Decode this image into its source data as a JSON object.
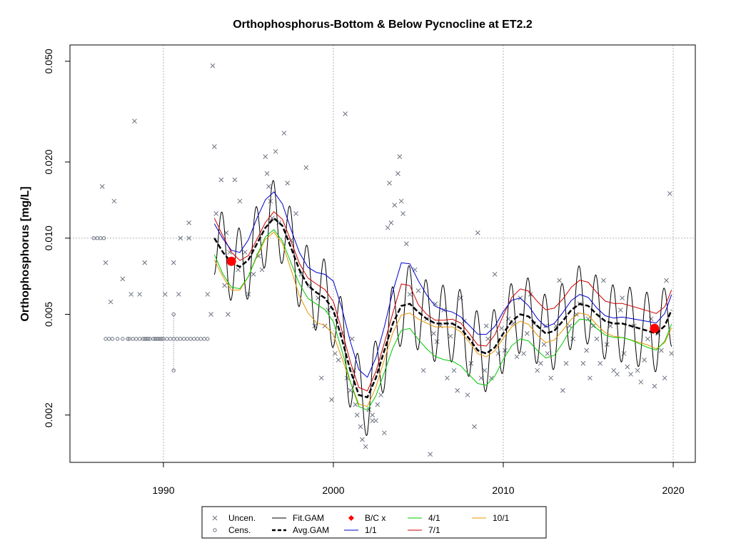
{
  "chart_data": {
    "type": "scatter",
    "title": "Orthophosphorus-Bottom & Below Pycnocline at ET2.2",
    "xlabel": "",
    "ylabel": "Orthophosphorus [mg/L]",
    "xlim": [
      1984.5,
      2021.3
    ],
    "ylim": [
      0.0013,
      0.058
    ],
    "ylog": true,
    "x_ticks": [
      1990,
      2000,
      2010,
      2020
    ],
    "x_tick_labels": [
      "1990",
      "2000",
      "2010",
      "2020"
    ],
    "y_ticks": [
      0.002,
      0.005,
      0.01,
      0.02,
      0.05
    ],
    "y_tick_labels": [
      "0.002",
      "0.005",
      "0.010",
      "0.020",
      "0.050"
    ],
    "grid": {
      "x": [
        1990,
        2000,
        2010,
        2020
      ],
      "y": [
        0.01
      ]
    },
    "colors": {
      "uncen": "#6b7280",
      "cens": "#6b7280",
      "fit_gam": "#000000",
      "avg_gam": "#000000",
      "bc": "#ff0000",
      "s1_1": "#0000cc",
      "s4_1": "#00c800",
      "s7_1": "#cc0000",
      "s10_1": "#e69500"
    },
    "legend": {
      "placement": "bottom-center",
      "entries": [
        {
          "key": "uncen",
          "label": "Uncen."
        },
        {
          "key": "cens",
          "label": "Cens."
        },
        {
          "key": "fit_gam",
          "label": "Fit.GAM"
        },
        {
          "key": "avg_gam",
          "label": "Avg.GAM"
        },
        {
          "key": "bc",
          "label": "B/C x"
        },
        {
          "key": "s1_1",
          "label": "1/1"
        },
        {
          "key": "s4_1",
          "label": "4/1"
        },
        {
          "key": "s7_1",
          "label": "7/1"
        },
        {
          "key": "s10_1",
          "label": "10/1"
        }
      ]
    },
    "avg_gam": {
      "x": [
        1993.0,
        1993.5,
        1994.0,
        1994.5,
        1995.0,
        1995.5,
        1996.0,
        1996.5,
        1997.0,
        1997.5,
        1998.0,
        1998.5,
        1999.0,
        1999.5,
        2000.0,
        2000.5,
        2001.0,
        2001.5,
        2002.0,
        2002.5,
        2003.0,
        2003.5,
        2004.0,
        2004.5,
        2005.0,
        2005.5,
        2006.0,
        2006.5,
        2007.0,
        2007.5,
        2008.0,
        2008.5,
        2009.0,
        2009.5,
        2010.0,
        2010.5,
        2011.0,
        2011.5,
        2012.0,
        2012.5,
        2013.0,
        2013.5,
        2014.0,
        2014.5,
        2015.0,
        2015.5,
        2016.0,
        2016.5,
        2017.0,
        2017.5,
        2018.0,
        2018.5,
        2019.0,
        2019.5,
        2019.9
      ],
      "values": [
        0.01,
        0.0088,
        0.008,
        0.0077,
        0.0082,
        0.0095,
        0.011,
        0.012,
        0.0112,
        0.0092,
        0.0075,
        0.0065,
        0.0061,
        0.0058,
        0.0052,
        0.004,
        0.003,
        0.0024,
        0.00235,
        0.0028,
        0.0036,
        0.0046,
        0.0054,
        0.0055,
        0.0051,
        0.0048,
        0.0046,
        0.0046,
        0.0046,
        0.0044,
        0.004,
        0.0036,
        0.0035,
        0.0037,
        0.0042,
        0.0047,
        0.005,
        0.0049,
        0.0045,
        0.0042,
        0.0043,
        0.0047,
        0.0052,
        0.0055,
        0.0054,
        0.005,
        0.0047,
        0.0046,
        0.0046,
        0.0045,
        0.0044,
        0.0043,
        0.0042,
        0.0045,
        0.0052
      ]
    },
    "bands": {
      "s1_1": [
        1.14,
        1.13,
        1.12,
        1.14,
        1.2,
        1.26,
        1.29,
        1.27,
        1.22,
        1.18,
        1.17,
        1.18,
        1.2,
        1.24,
        1.3,
        1.32,
        1.3,
        1.26,
        1.2,
        1.2,
        1.24,
        1.34,
        1.48,
        1.44,
        1.33,
        1.24,
        1.17,
        1.13,
        1.11,
        1.11,
        1.13,
        1.16,
        1.19,
        1.21,
        1.22,
        1.21,
        1.16,
        1.1,
        1.07,
        1.06,
        1.07,
        1.08,
        1.09,
        1.09,
        1.08,
        1.06,
        1.05,
        1.05,
        1.06,
        1.07,
        1.08,
        1.09,
        1.1,
        1.12,
        1.15
      ],
      "s4_1": [
        0.86,
        0.82,
        0.8,
        0.82,
        0.86,
        0.9,
        0.92,
        0.9,
        0.87,
        0.87,
        0.88,
        0.89,
        0.9,
        0.9,
        0.9,
        0.9,
        0.9,
        0.9,
        0.89,
        0.85,
        0.82,
        0.8,
        0.8,
        0.8,
        0.78,
        0.76,
        0.74,
        0.72,
        0.71,
        0.71,
        0.72,
        0.74,
        0.75,
        0.77,
        0.79,
        0.8,
        0.8,
        0.8,
        0.8,
        0.8,
        0.8,
        0.82,
        0.85,
        0.87,
        0.88,
        0.88,
        0.88,
        0.88,
        0.88,
        0.88,
        0.87,
        0.86,
        0.86,
        0.87,
        0.88
      ],
      "s7_1": [
        1.2,
        1.16,
        1.1,
        1.06,
        1.04,
        1.04,
        1.05,
        1.06,
        1.06,
        1.06,
        1.06,
        1.07,
        1.08,
        1.08,
        1.08,
        1.08,
        1.08,
        1.07,
        1.06,
        1.06,
        1.07,
        1.1,
        1.22,
        1.18,
        1.07,
        1.04,
        1.03,
        1.03,
        1.04,
        1.05,
        1.05,
        1.05,
        1.07,
        1.12,
        1.18,
        1.24,
        1.26,
        1.26,
        1.25,
        1.24,
        1.23,
        1.22,
        1.23,
        1.24,
        1.24,
        1.22,
        1.2,
        1.2,
        1.2,
        1.2,
        1.2,
        1.2,
        1.2,
        1.19,
        1.2
      ],
      "s10_1": [
        0.82,
        0.8,
        0.78,
        0.81,
        0.86,
        0.89,
        0.9,
        0.88,
        0.85,
        0.82,
        0.79,
        0.78,
        0.76,
        0.78,
        0.8,
        0.84,
        0.9,
        0.92,
        0.92,
        0.92,
        0.92,
        0.92,
        0.92,
        0.92,
        0.94,
        0.96,
        0.97,
        0.97,
        0.97,
        0.97,
        0.97,
        0.97,
        0.97,
        0.97,
        0.96,
        0.95,
        0.94,
        0.93,
        0.92,
        0.92,
        0.92,
        0.92,
        0.92,
        0.92,
        0.92,
        0.91,
        0.9,
        0.89,
        0.88,
        0.88,
        0.88,
        0.88,
        0.87,
        0.86,
        0.85
      ]
    },
    "fit_gam_swing": 0.35,
    "bc_points": [
      {
        "x": 1994.0,
        "y": 0.0081
      },
      {
        "x": 2018.9,
        "y": 0.0044
      }
    ],
    "uncensored": [
      [
        1986.4,
        0.016
      ],
      [
        1986.6,
        0.008
      ],
      [
        1986.9,
        0.0056
      ],
      [
        1987.1,
        0.014
      ],
      [
        1987.6,
        0.0069
      ],
      [
        1988.1,
        0.006
      ],
      [
        1988.3,
        0.029
      ],
      [
        1988.6,
        0.006
      ],
      [
        1988.9,
        0.008
      ],
      [
        1990.1,
        0.006
      ],
      [
        1990.6,
        0.008
      ],
      [
        1990.9,
        0.006
      ],
      [
        1991.0,
        0.01
      ],
      [
        1991.5,
        0.0115
      ],
      [
        1991.5,
        0.01
      ],
      [
        1992.6,
        0.006
      ],
      [
        1992.8,
        0.005
      ],
      [
        1992.9,
        0.048
      ],
      [
        1993.0,
        0.023
      ],
      [
        1993.1,
        0.0125
      ],
      [
        1993.4,
        0.017
      ],
      [
        1993.6,
        0.0065
      ],
      [
        1993.7,
        0.0105
      ],
      [
        1993.8,
        0.005
      ],
      [
        1993.9,
        0.0088
      ],
      [
        1994.2,
        0.017
      ],
      [
        1994.4,
        0.0075
      ],
      [
        1994.5,
        0.014
      ],
      [
        1994.8,
        0.0088
      ],
      [
        1995.0,
        0.006
      ],
      [
        1995.3,
        0.0072
      ],
      [
        1995.6,
        0.0085
      ],
      [
        1995.8,
        0.0075
      ],
      [
        1996.0,
        0.021
      ],
      [
        1996.1,
        0.018
      ],
      [
        1996.2,
        0.016
      ],
      [
        1996.3,
        0.014
      ],
      [
        1996.4,
        0.012
      ],
      [
        1996.6,
        0.022
      ],
      [
        1996.8,
        0.0115
      ],
      [
        1997.1,
        0.026
      ],
      [
        1997.3,
        0.0165
      ],
      [
        1997.5,
        0.0098
      ],
      [
        1997.8,
        0.0125
      ],
      [
        1998.1,
        0.0072
      ],
      [
        1998.4,
        0.019
      ],
      [
        1998.6,
        0.0065
      ],
      [
        1998.9,
        0.0045
      ],
      [
        1999.1,
        0.0058
      ],
      [
        1999.3,
        0.0028
      ],
      [
        1999.5,
        0.0045
      ],
      [
        1999.7,
        0.0052
      ],
      [
        1999.9,
        0.0023
      ],
      [
        2000.1,
        0.0035
      ],
      [
        2000.3,
        0.0033
      ],
      [
        2000.5,
        0.0042
      ],
      [
        2000.7,
        0.031
      ],
      [
        2000.8,
        0.0028
      ],
      [
        2001.0,
        0.0025
      ],
      [
        2001.1,
        0.004
      ],
      [
        2001.2,
        0.003
      ],
      [
        2001.3,
        0.0022
      ],
      [
        2001.4,
        0.002
      ],
      [
        2001.6,
        0.0018
      ],
      [
        2001.7,
        0.0016
      ],
      [
        2001.9,
        0.0015
      ],
      [
        2002.1,
        0.0021
      ],
      [
        2002.3,
        0.0019
      ],
      [
        2002.5,
        0.0019
      ],
      [
        2002.6,
        0.0022
      ],
      [
        2002.8,
        0.0024
      ],
      [
        2003.0,
        0.0017
      ],
      [
        2003.2,
        0.011
      ],
      [
        2003.4,
        0.0115
      ],
      [
        2003.6,
        0.0135
      ],
      [
        2003.8,
        0.018
      ],
      [
        2003.9,
        0.021
      ],
      [
        2004.0,
        0.014
      ],
      [
        2004.1,
        0.0125
      ],
      [
        2004.3,
        0.0095
      ],
      [
        2004.5,
        0.006
      ],
      [
        2004.8,
        0.0075
      ],
      [
        2005.0,
        0.0062
      ],
      [
        2005.3,
        0.003
      ],
      [
        2005.5,
        0.0048
      ],
      [
        2005.7,
        0.0014
      ],
      [
        2005.9,
        0.0042
      ],
      [
        2006.1,
        0.0039
      ],
      [
        2006.3,
        0.0045
      ],
      [
        2006.5,
        0.0052
      ],
      [
        2006.7,
        0.0028
      ],
      [
        2006.9,
        0.0041
      ],
      [
        2007.1,
        0.003
      ],
      [
        2007.3,
        0.0025
      ],
      [
        2007.5,
        0.0058
      ],
      [
        2007.7,
        0.0047
      ],
      [
        2007.9,
        0.0024
      ],
      [
        2008.1,
        0.0032
      ],
      [
        2008.3,
        0.0018
      ],
      [
        2008.5,
        0.0105
      ],
      [
        2008.7,
        0.0028
      ],
      [
        2008.9,
        0.003
      ],
      [
        2009.1,
        0.004
      ],
      [
        2009.3,
        0.0028
      ],
      [
        2009.5,
        0.0072
      ],
      [
        2009.7,
        0.0035
      ],
      [
        2009.9,
        0.0044
      ],
      [
        2010.1,
        0.0036
      ],
      [
        2010.3,
        0.0048
      ],
      [
        2010.6,
        0.0046
      ],
      [
        2010.8,
        0.0034
      ],
      [
        2011.0,
        0.0058
      ],
      [
        2011.2,
        0.0035
      ],
      [
        2011.4,
        0.0042
      ],
      [
        2011.6,
        0.006
      ],
      [
        2011.8,
        0.0046
      ],
      [
        2012.0,
        0.003
      ],
      [
        2012.2,
        0.0032
      ],
      [
        2012.4,
        0.0038
      ],
      [
        2012.6,
        0.0035
      ],
      [
        2012.8,
        0.0028
      ],
      [
        2013.1,
        0.0045
      ],
      [
        2013.3,
        0.0068
      ],
      [
        2013.5,
        0.0025
      ],
      [
        2013.7,
        0.0032
      ],
      [
        2013.9,
        0.0045
      ],
      [
        2014.1,
        0.004
      ],
      [
        2014.3,
        0.005
      ],
      [
        2014.5,
        0.0055
      ],
      [
        2014.7,
        0.0032
      ],
      [
        2014.9,
        0.0036
      ],
      [
        2015.1,
        0.0028
      ],
      [
        2015.3,
        0.0045
      ],
      [
        2015.5,
        0.004
      ],
      [
        2015.7,
        0.0032
      ],
      [
        2015.9,
        0.0068
      ],
      [
        2016.1,
        0.0038
      ],
      [
        2016.3,
        0.0045
      ],
      [
        2016.5,
        0.003
      ],
      [
        2016.7,
        0.0029
      ],
      [
        2016.9,
        0.0052
      ],
      [
        2017.1,
        0.0035
      ],
      [
        2017.3,
        0.0031
      ],
      [
        2017.5,
        0.0029
      ],
      [
        2017.7,
        0.0045
      ],
      [
        2017.9,
        0.003
      ],
      [
        2018.1,
        0.0027
      ],
      [
        2018.3,
        0.0033
      ],
      [
        2018.5,
        0.004
      ],
      [
        2018.7,
        0.0048
      ],
      [
        2018.9,
        0.0026
      ],
      [
        2019.1,
        0.0042
      ],
      [
        2019.3,
        0.0036
      ],
      [
        2019.5,
        0.0028
      ],
      [
        2019.6,
        0.0068
      ],
      [
        2019.8,
        0.015
      ],
      [
        2019.9,
        0.0035
      ],
      [
        2015.0,
        0.0048
      ],
      [
        2017.0,
        0.0058
      ],
      [
        2012.5,
        0.0045
      ],
      [
        2009.0,
        0.0045
      ],
      [
        2006.0,
        0.0055
      ],
      [
        2002.3,
        0.002
      ],
      [
        2003.3,
        0.0165
      ]
    ],
    "censored_1986": [
      1985.9,
      1986.1,
      1986.3,
      1986.5
    ],
    "censored_1986_value": 0.01,
    "censored_bulk": [
      1986.6,
      1986.8,
      1987.0,
      1987.3,
      1987.6,
      1987.9,
      1988.0,
      1988.2,
      1988.4,
      1988.6,
      1988.8,
      1988.9,
      1989.0,
      1989.1,
      1989.2,
      1989.4,
      1989.5,
      1989.6,
      1989.7,
      1989.8,
      1989.9,
      1990.0,
      1990.2,
      1990.4,
      1990.6,
      1990.8,
      1991.0,
      1991.2,
      1991.4,
      1991.6,
      1991.8,
      1992.0,
      1992.2,
      1992.4,
      1992.6
    ],
    "censored_bulk_value": 0.004,
    "censored_interval": {
      "x": 1990.6,
      "low": 0.003,
      "high": 0.005
    }
  }
}
